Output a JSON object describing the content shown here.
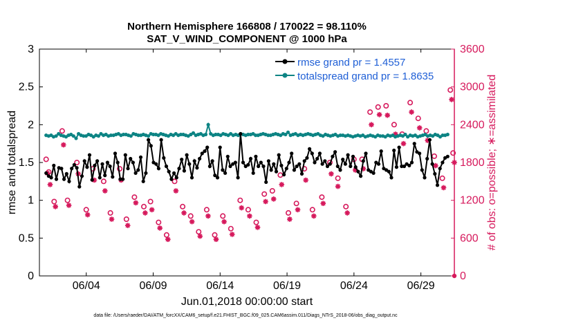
{
  "chart_data": {
    "type": "line",
    "title_line1": "Northern Hemisphere 166808 / 170022 = 98.110%",
    "title_line2": "SAT_V_WIND_COMPONENT @ 1000 hPa",
    "xlabel": "Jun.01,2018 00:00:00 start",
    "ylabel_left": "rmse and totalspread",
    "ylabel_right": "# of obs: o=possible; ∗=assimilated",
    "footer": "data file: /Users/raeder/DAI/ATM_forcXX/CAM6_setup/f.e21.FHIST_BGC.f09_025.CAM6assim.011/Diags_NTrS_2018-06/obs_diag_output.nc",
    "x_range": [
      0.5,
      31.5
    ],
    "x_ticks": [
      4,
      9,
      14,
      19,
      24,
      29
    ],
    "x_tick_labels": [
      "06/04",
      "06/09",
      "06/14",
      "06/19",
      "06/24",
      "06/29"
    ],
    "y_left_range": [
      0,
      3
    ],
    "y_left_ticks": [
      "0",
      "0.5",
      "1",
      "1.5",
      "2",
      "2.5",
      "3"
    ],
    "y_right_range": [
      0,
      3600
    ],
    "y_right_ticks": [
      "0",
      "600",
      "1200",
      "1800",
      "2400",
      "3000",
      "3600"
    ],
    "colors": {
      "rmse": "#000000",
      "spread": "#0d8484",
      "obs": "#d6195c",
      "legend_text": "#1f5fd6"
    },
    "legend": [
      {
        "label": "rmse grand pr = 1.4557",
        "series": "rmse"
      },
      {
        "label": "totalspread grand pr = 1.8635",
        "series": "spread"
      }
    ],
    "series": [
      {
        "name": "rmse",
        "axis": "left",
        "values": [
          1.36,
          1.32,
          1.3,
          1.46,
          1.28,
          1.43,
          1.42,
          1.28,
          1.35,
          1.25,
          1.42,
          1.47,
          1.43,
          1.18,
          1.32,
          1.52,
          1.44,
          1.6,
          1.27,
          1.46,
          1.52,
          1.3,
          1.48,
          1.33,
          1.5,
          1.45,
          1.31,
          1.62,
          1.5,
          1.28,
          1.28,
          1.6,
          1.42,
          1.55,
          1.5,
          1.36,
          1.4,
          1.57,
          1.25,
          1.36,
          1.8,
          1.72,
          1.5,
          1.48,
          1.42,
          1.8,
          1.56,
          1.45,
          1.38,
          1.28,
          1.36,
          1.3,
          1.42,
          1.54,
          1.39,
          1.6,
          1.48,
          1.3,
          1.52,
          1.43,
          1.55,
          1.62,
          1.65,
          1.7,
          1.45,
          1.52,
          1.33,
          1.3,
          1.7,
          1.4,
          1.36,
          1.58,
          1.45,
          1.48,
          1.5,
          1.3,
          1.88,
          1.5,
          1.45,
          1.47,
          1.55,
          1.36,
          1.58,
          1.45,
          1.5,
          1.45,
          1.24,
          1.52,
          1.4,
          1.48,
          1.38,
          1.6,
          1.46,
          1.34,
          1.42,
          1.5,
          1.62,
          1.4,
          1.45,
          1.48,
          1.35,
          1.52,
          1.56,
          1.68,
          1.62,
          1.5,
          1.55,
          1.62,
          1.48,
          1.52,
          1.45,
          1.48,
          1.58,
          1.64,
          1.45,
          1.4,
          1.54,
          1.48,
          1.6,
          1.45,
          1.58,
          1.44,
          1.38,
          1.32,
          1.52,
          1.62,
          1.4,
          1.38,
          1.36,
          1.5,
          1.48,
          1.65,
          1.42,
          1.4,
          1.38,
          1.3,
          1.66,
          1.44,
          1.7,
          1.45,
          1.45,
          1.48,
          1.46,
          1.5,
          1.75,
          1.64,
          1.62,
          1.4,
          1.3,
          1.55,
          1.8,
          1.48,
          1.35,
          1.2,
          1.42,
          1.5,
          1.56,
          1.58
        ]
      },
      {
        "name": "totalspread",
        "axis": "left",
        "values": [
          1.86,
          1.85,
          1.86,
          1.84,
          1.85,
          1.88,
          1.86,
          1.85,
          1.84,
          1.86,
          1.87,
          1.85,
          1.82,
          1.88,
          1.86,
          1.85,
          1.85,
          1.87,
          1.86,
          1.84,
          1.86,
          1.85,
          1.88,
          1.86,
          1.87,
          1.85,
          1.86,
          1.86,
          1.87,
          1.88,
          1.86,
          1.87,
          1.87,
          1.86,
          1.85,
          1.88,
          1.87,
          1.86,
          1.86,
          1.87,
          1.86,
          1.85,
          1.88,
          1.87,
          1.87,
          1.86,
          1.88,
          1.87,
          1.86,
          1.85,
          1.87,
          1.86,
          1.88,
          1.86,
          1.87,
          1.87,
          1.86,
          1.85,
          1.87,
          1.89,
          1.86,
          1.87,
          1.88,
          1.86,
          1.87,
          2.0,
          1.88,
          1.86,
          1.87,
          1.87,
          1.86,
          1.88,
          1.87,
          1.86,
          1.88,
          1.86,
          1.87,
          1.86,
          1.88,
          1.87,
          1.86,
          1.87,
          1.87,
          1.88,
          1.86,
          1.86,
          1.87,
          1.88,
          1.87,
          1.86,
          1.86,
          1.87,
          1.88,
          1.87,
          1.86,
          1.88,
          1.87,
          1.9,
          1.86,
          1.87,
          1.88,
          1.86,
          1.87,
          1.86,
          1.87,
          1.88,
          1.87,
          1.86,
          1.87,
          1.88,
          1.86,
          1.85,
          1.87,
          1.86,
          1.85,
          1.86,
          1.87,
          1.85,
          1.86,
          1.86,
          1.85,
          1.86,
          1.85,
          1.84,
          1.85,
          1.86,
          1.85,
          1.86,
          1.84,
          1.85,
          1.86,
          1.85,
          1.84,
          1.86,
          1.85,
          1.85,
          1.84,
          1.86,
          1.85,
          1.86,
          1.84,
          1.85,
          1.86,
          1.85,
          1.87,
          1.84,
          1.86,
          1.85,
          1.86,
          1.84,
          1.85,
          1.86,
          1.87,
          1.85,
          1.86,
          1.85,
          1.87,
          1.86,
          1.84,
          1.86,
          1.86,
          1.87
        ]
      },
      {
        "name": "obs_possible",
        "axis": "right",
        "x": [
          1.0,
          1.2,
          1.6,
          2.2,
          2.6,
          3.3,
          4.0,
          4.5,
          5.3,
          5.8,
          6.5,
          7.0,
          7.6,
          8.3,
          8.8,
          9.4,
          10.0,
          10.6,
          11.2,
          11.8,
          12.4,
          13.0,
          13.6,
          14.2,
          14.8,
          15.5,
          16.1,
          16.7,
          17.3,
          17.9,
          18.5,
          19.1,
          19.7,
          20.3,
          20.9,
          21.6,
          22.2,
          22.8,
          23.4,
          24.0,
          24.6,
          25.2,
          25.8,
          26.4,
          27.0,
          27.6,
          28.2,
          28.8,
          29.4,
          30.0,
          30.6,
          31.2,
          31.4
        ],
        "values": [
          1850,
          1650,
          1180,
          2300,
          1200,
          1800,
          1050,
          1700,
          1500,
          1000,
          1700,
          900,
          1250,
          1100,
          1180,
          850,
          650,
          1500,
          1100,
          950,
          700,
          1050,
          650,
          950,
          750,
          1200,
          1050,
          850,
          1300,
          1350,
          1600,
          1000,
          1150,
          1700,
          1050,
          1250,
          1800,
          1550,
          1100,
          1850,
          1850,
          2600,
          2680,
          2700,
          2400,
          2250,
          2750,
          2500,
          2300,
          1900,
          1550,
          2950,
          1950
        ]
      },
      {
        "name": "obs_assimilated",
        "axis": "right",
        "x": [
          1.1,
          1.3,
          1.7,
          2.3,
          2.7,
          3.4,
          4.1,
          4.6,
          5.4,
          5.9,
          6.6,
          7.1,
          7.7,
          8.4,
          8.9,
          9.5,
          10.1,
          10.7,
          11.3,
          11.9,
          12.5,
          13.1,
          13.7,
          14.3,
          14.9,
          15.6,
          16.2,
          16.8,
          17.4,
          18.0,
          18.6,
          19.2,
          19.8,
          20.4,
          21.0,
          21.7,
          22.3,
          22.8,
          23.5,
          24.1,
          24.7,
          25.3,
          25.9,
          26.5,
          27.1,
          27.7,
          28.3,
          28.9,
          29.5,
          30.1,
          30.7,
          31.3,
          31.5
        ],
        "values": [
          1630,
          1450,
          1100,
          2080,
          1120,
          1620,
          970,
          1520,
          1350,
          900,
          1520,
          800,
          1160,
          1000,
          1050,
          760,
          580,
          1350,
          1000,
          860,
          630,
          950,
          580,
          860,
          660,
          1080,
          950,
          770,
          1180,
          1220,
          1450,
          900,
          1050,
          1520,
          950,
          1150,
          1620,
          1420,
          1000,
          1680,
          1700,
          2400,
          2560,
          2550,
          2250,
          2100,
          2600,
          2350,
          2150,
          1750,
          1400,
          2800,
          1800
        ]
      }
    ]
  }
}
